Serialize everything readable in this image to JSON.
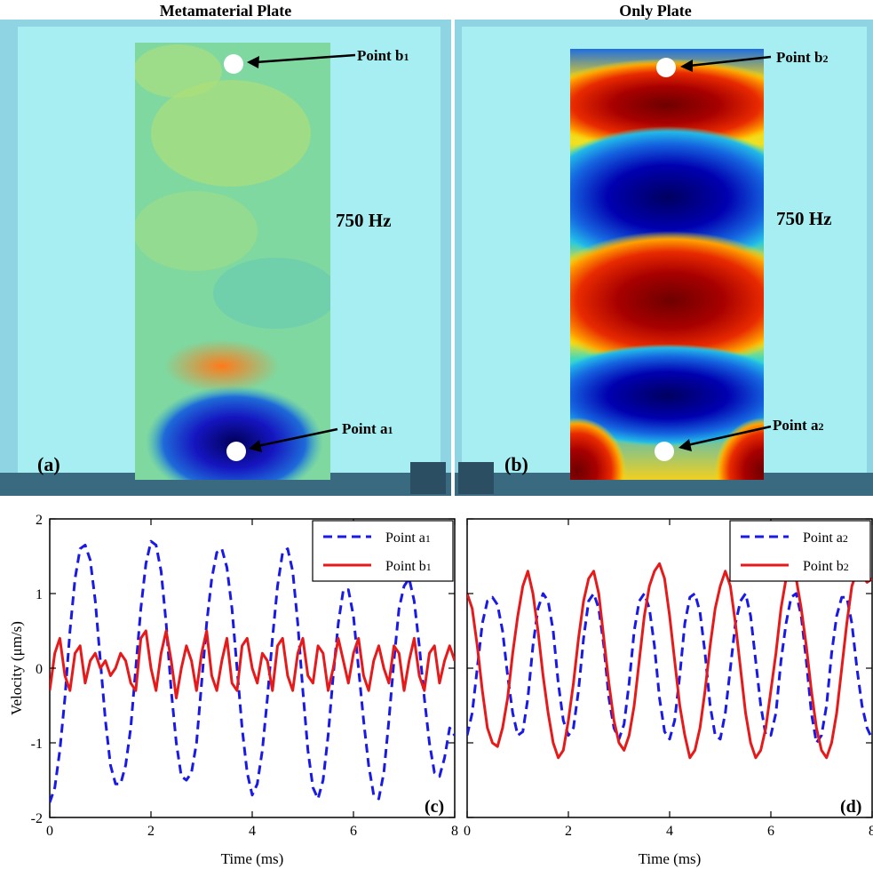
{
  "panel_a": {
    "title": "Metamaterial Plate",
    "frequency": "750 Hz",
    "label": "(a)",
    "points": [
      {
        "main": "Point b",
        "sub": "1"
      },
      {
        "main": "Point a",
        "sub": "1"
      }
    ]
  },
  "panel_b": {
    "title": "Only Plate",
    "frequency": "750 Hz",
    "label": "(b)",
    "points": [
      {
        "main": "Point b",
        "sub": "2"
      },
      {
        "main": "Point a",
        "sub": "2"
      }
    ]
  },
  "chart_data": [
    {
      "type": "line",
      "panel": "(c)",
      "xlabel": "Time (ms)",
      "ylabel": "Velocity (μm/s)",
      "xlim": [
        0,
        8
      ],
      "ylim": [
        -2,
        2
      ],
      "xticks": [
        0,
        2,
        4,
        6,
        8
      ],
      "yticks": [
        -2,
        -1,
        0,
        1,
        2
      ],
      "grid": false,
      "legend": "top-right",
      "series": [
        {
          "name": "Point a",
          "sub": "1",
          "style": "dashed",
          "color": "#1a1ae6",
          "x": [
            0,
            0.1,
            0.2,
            0.3,
            0.4,
            0.5,
            0.6,
            0.7,
            0.8,
            0.9,
            1.0,
            1.1,
            1.2,
            1.3,
            1.4,
            1.5,
            1.6,
            1.7,
            1.8,
            1.9,
            2.0,
            2.1,
            2.2,
            2.3,
            2.4,
            2.5,
            2.6,
            2.7,
            2.8,
            2.9,
            3.0,
            3.1,
            3.2,
            3.3,
            3.4,
            3.5,
            3.6,
            3.7,
            3.8,
            3.9,
            4.0,
            4.1,
            4.2,
            4.3,
            4.4,
            4.5,
            4.6,
            4.7,
            4.8,
            4.9,
            5.0,
            5.1,
            5.2,
            5.3,
            5.4,
            5.5,
            5.6,
            5.7,
            5.8,
            5.9,
            6.0,
            6.1,
            6.2,
            6.3,
            6.4,
            6.5,
            6.6,
            6.7,
            6.8,
            6.9,
            7.0,
            7.1,
            7.2,
            7.3,
            7.4,
            7.5,
            7.6,
            7.7,
            7.8,
            7.9,
            8.0
          ],
          "y": [
            -1.8,
            -1.6,
            -1.1,
            -0.4,
            0.5,
            1.2,
            1.6,
            1.65,
            1.45,
            0.9,
            0.1,
            -0.7,
            -1.3,
            -1.55,
            -1.55,
            -1.3,
            -0.8,
            0.0,
            0.8,
            1.4,
            1.7,
            1.65,
            1.3,
            0.6,
            -0.3,
            -1.0,
            -1.45,
            -1.5,
            -1.4,
            -1.0,
            -0.2,
            0.6,
            1.2,
            1.55,
            1.6,
            1.35,
            0.8,
            0.0,
            -0.8,
            -1.4,
            -1.7,
            -1.55,
            -1.1,
            -0.4,
            0.4,
            1.1,
            1.55,
            1.6,
            1.3,
            0.6,
            -0.3,
            -1.1,
            -1.6,
            -1.75,
            -1.5,
            -0.9,
            -0.1,
            0.6,
            1.05,
            1.05,
            0.7,
            0.0,
            -0.7,
            -1.3,
            -1.7,
            -1.75,
            -1.4,
            -0.7,
            0.1,
            0.8,
            1.1,
            1.2,
            0.9,
            0.3,
            -0.4,
            -1.0,
            -1.4,
            -1.45,
            -1.2,
            -0.8,
            -0.9
          ]
        },
        {
          "name": "Point b",
          "sub": "1",
          "style": "solid",
          "color": "#e61a1a",
          "x": [
            0,
            0.1,
            0.2,
            0.3,
            0.4,
            0.5,
            0.6,
            0.7,
            0.8,
            0.9,
            1.0,
            1.1,
            1.2,
            1.3,
            1.4,
            1.5,
            1.6,
            1.7,
            1.8,
            1.9,
            2.0,
            2.1,
            2.2,
            2.3,
            2.4,
            2.5,
            2.6,
            2.7,
            2.8,
            2.9,
            3.0,
            3.1,
            3.2,
            3.3,
            3.4,
            3.5,
            3.6,
            3.7,
            3.8,
            3.9,
            4.0,
            4.1,
            4.2,
            4.3,
            4.4,
            4.5,
            4.6,
            4.7,
            4.8,
            4.9,
            5.0,
            5.1,
            5.2,
            5.3,
            5.4,
            5.5,
            5.6,
            5.7,
            5.8,
            5.9,
            6.0,
            6.1,
            6.2,
            6.3,
            6.4,
            6.5,
            6.6,
            6.7,
            6.8,
            6.9,
            7.0,
            7.1,
            7.2,
            7.3,
            7.4,
            7.5,
            7.6,
            7.7,
            7.8,
            7.9,
            8.0
          ],
          "y": [
            -0.3,
            0.2,
            0.4,
            -0.1,
            -0.3,
            0.2,
            0.3,
            -0.2,
            0.1,
            0.2,
            0.0,
            0.1,
            -0.1,
            0.0,
            0.2,
            0.1,
            -0.2,
            -0.3,
            0.4,
            0.5,
            0.0,
            -0.3,
            0.2,
            0.5,
            0.1,
            -0.4,
            0.0,
            0.3,
            0.1,
            -0.3,
            0.2,
            0.5,
            -0.1,
            -0.3,
            0.1,
            0.4,
            -0.2,
            -0.3,
            0.3,
            0.4,
            0.0,
            -0.2,
            0.2,
            0.1,
            -0.3,
            0.3,
            0.4,
            -0.1,
            -0.3,
            0.2,
            0.4,
            -0.1,
            -0.2,
            0.3,
            0.2,
            -0.3,
            0.0,
            0.4,
            0.1,
            -0.2,
            0.2,
            0.4,
            -0.1,
            -0.3,
            0.1,
            0.3,
            0.0,
            -0.2,
            0.3,
            0.2,
            -0.3,
            0.1,
            0.4,
            -0.1,
            -0.3,
            0.2,
            0.3,
            -0.2,
            0.1,
            0.3,
            0.1
          ]
        }
      ]
    },
    {
      "type": "line",
      "panel": "(d)",
      "xlabel": "Time (ms)",
      "ylabel": "",
      "xlim": [
        0,
        8
      ],
      "ylim": [
        -2,
        2
      ],
      "xticks": [
        0,
        2,
        4,
        6,
        8
      ],
      "yticks": [
        -2,
        -1,
        0,
        1,
        2
      ],
      "grid": false,
      "legend": "top-right",
      "series": [
        {
          "name": "Point a",
          "sub": "2",
          "style": "dashed",
          "color": "#1a1ae6",
          "x": [
            0,
            0.1,
            0.2,
            0.3,
            0.4,
            0.5,
            0.6,
            0.7,
            0.8,
            0.9,
            1.0,
            1.1,
            1.2,
            1.3,
            1.4,
            1.5,
            1.6,
            1.7,
            1.8,
            1.9,
            2.0,
            2.1,
            2.2,
            2.3,
            2.4,
            2.5,
            2.6,
            2.7,
            2.8,
            2.9,
            3.0,
            3.1,
            3.2,
            3.3,
            3.4,
            3.5,
            3.6,
            3.7,
            3.8,
            3.9,
            4.0,
            4.1,
            4.2,
            4.3,
            4.4,
            4.5,
            4.6,
            4.7,
            4.8,
            4.9,
            5.0,
            5.1,
            5.2,
            5.3,
            5.4,
            5.5,
            5.6,
            5.7,
            5.8,
            5.9,
            6.0,
            6.1,
            6.2,
            6.3,
            6.4,
            6.5,
            6.6,
            6.7,
            6.8,
            6.9,
            7.0,
            7.1,
            7.2,
            7.3,
            7.4,
            7.5,
            7.6,
            7.7,
            7.8,
            7.9,
            8.0
          ],
          "y": [
            -0.9,
            -0.6,
            0.0,
            0.6,
            0.9,
            0.95,
            0.85,
            0.5,
            -0.1,
            -0.6,
            -0.9,
            -0.85,
            -0.4,
            0.3,
            0.8,
            1.0,
            0.9,
            0.5,
            -0.2,
            -0.7,
            -0.9,
            -0.8,
            -0.3,
            0.4,
            0.9,
            1.0,
            0.8,
            0.3,
            -0.4,
            -0.8,
            -0.95,
            -0.75,
            -0.2,
            0.5,
            0.9,
            1.0,
            0.8,
            0.3,
            -0.4,
            -0.85,
            -0.95,
            -0.7,
            -0.1,
            0.6,
            0.95,
            1.0,
            0.75,
            0.2,
            -0.5,
            -0.9,
            -0.95,
            -0.6,
            0.0,
            0.6,
            0.9,
            1.0,
            0.7,
            0.1,
            -0.5,
            -0.9,
            -0.9,
            -0.6,
            0.1,
            0.6,
            0.95,
            1.0,
            0.7,
            0.1,
            -0.6,
            -1.0,
            -0.9,
            -0.5,
            0.2,
            0.7,
            0.95,
            0.95,
            0.6,
            0.0,
            -0.5,
            -0.8,
            -0.95
          ]
        },
        {
          "name": "Point b",
          "sub": "2",
          "style": "solid",
          "color": "#e61a1a",
          "x": [
            0,
            0.1,
            0.2,
            0.3,
            0.4,
            0.5,
            0.6,
            0.7,
            0.8,
            0.9,
            1.0,
            1.1,
            1.2,
            1.3,
            1.4,
            1.5,
            1.6,
            1.7,
            1.8,
            1.9,
            2.0,
            2.1,
            2.2,
            2.3,
            2.4,
            2.5,
            2.6,
            2.7,
            2.8,
            2.9,
            3.0,
            3.1,
            3.2,
            3.3,
            3.4,
            3.5,
            3.6,
            3.7,
            3.8,
            3.9,
            4.0,
            4.1,
            4.2,
            4.3,
            4.4,
            4.5,
            4.6,
            4.7,
            4.8,
            4.9,
            5.0,
            5.1,
            5.2,
            5.3,
            5.4,
            5.5,
            5.6,
            5.7,
            5.8,
            5.9,
            6.0,
            6.1,
            6.2,
            6.3,
            6.4,
            6.5,
            6.6,
            6.7,
            6.8,
            6.9,
            7.0,
            7.1,
            7.2,
            7.3,
            7.4,
            7.5,
            7.6,
            7.7,
            7.8,
            7.9,
            8.0
          ],
          "y": [
            1.0,
            0.8,
            0.3,
            -0.3,
            -0.8,
            -1.0,
            -1.05,
            -0.8,
            -0.4,
            0.2,
            0.7,
            1.1,
            1.3,
            1.0,
            0.5,
            -0.1,
            -0.6,
            -1.0,
            -1.2,
            -1.1,
            -0.7,
            -0.2,
            0.4,
            0.9,
            1.2,
            1.3,
            1.0,
            0.4,
            -0.2,
            -0.7,
            -1.0,
            -1.1,
            -0.9,
            -0.5,
            0.1,
            0.7,
            1.1,
            1.3,
            1.4,
            1.2,
            0.7,
            0.1,
            -0.5,
            -0.9,
            -1.2,
            -1.1,
            -0.8,
            -0.3,
            0.3,
            0.8,
            1.1,
            1.3,
            1.1,
            0.6,
            0.0,
            -0.6,
            -1.0,
            -1.2,
            -1.1,
            -0.8,
            -0.3,
            0.2,
            0.8,
            1.2,
            1.3,
            1.2,
            0.8,
            0.3,
            -0.3,
            -0.8,
            -1.1,
            -1.2,
            -1.0,
            -0.6,
            0.0,
            0.6,
            1.1,
            1.3,
            1.25,
            1.15,
            1.2
          ]
        }
      ]
    }
  ]
}
